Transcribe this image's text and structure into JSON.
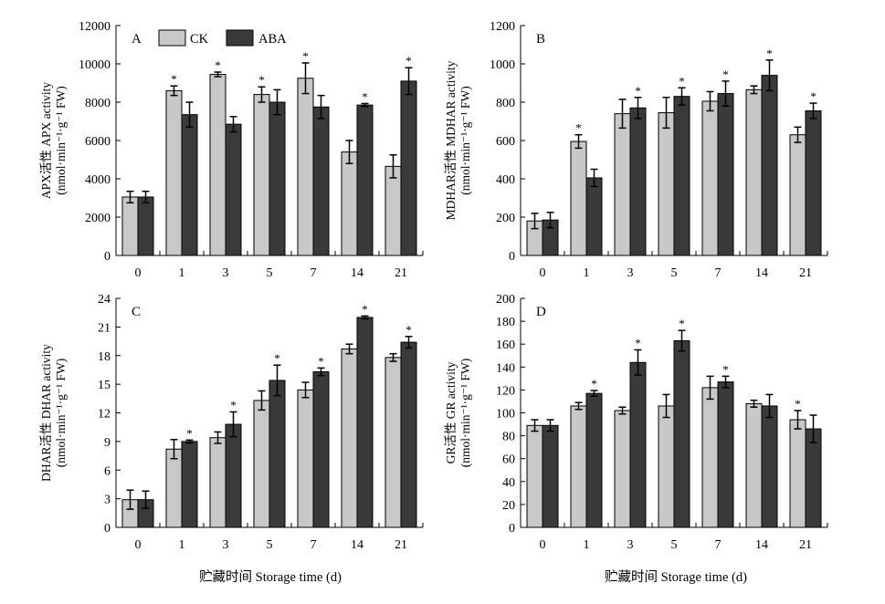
{
  "figure": {
    "xlabel": "贮藏时间 Storage time (d)",
    "legend": [
      {
        "name": "CK",
        "color": "#c8c8c8"
      },
      {
        "name": "ABA",
        "color": "#3a3a3a"
      }
    ]
  },
  "colors": {
    "CK": "#c8c8c8",
    "ABA": "#3a3a3a",
    "axis": "#000000"
  },
  "chart_data": [
    {
      "type": "bar",
      "panel": "A",
      "ylabel_line1": "APX活性 APX activity",
      "ylabel_line2": "(nmol·min⁻¹·g⁻¹ FW)",
      "ylim": [
        0,
        12000
      ],
      "yticks": [
        0,
        2000,
        4000,
        6000,
        8000,
        10000,
        12000
      ],
      "categories": [
        "0",
        "1",
        "3",
        "5",
        "7",
        "14",
        "21"
      ],
      "series": [
        {
          "name": "CK",
          "values": [
            3050,
            8600,
            9450,
            8400,
            9250,
            5400,
            4650
          ],
          "errors": [
            300,
            250,
            120,
            400,
            800,
            600,
            600
          ],
          "stars": [
            false,
            true,
            true,
            true,
            true,
            false,
            false
          ]
        },
        {
          "name": "ABA",
          "values": [
            3050,
            7350,
            6850,
            8000,
            7750,
            7850,
            9100
          ],
          "errors": [
            300,
            650,
            400,
            650,
            600,
            80,
            700
          ],
          "stars": [
            false,
            false,
            false,
            false,
            false,
            true,
            true
          ]
        }
      ]
    },
    {
      "type": "bar",
      "panel": "B",
      "ylabel_line1": "MDHAR活性 MDHAR activity",
      "ylabel_line2": "(nmol·min⁻¹·g⁻¹ FW)",
      "ylim": [
        0,
        1200
      ],
      "yticks": [
        0,
        200,
        400,
        600,
        800,
        1000,
        1200
      ],
      "categories": [
        "0",
        "1",
        "3",
        "5",
        "7",
        "14",
        "21"
      ],
      "series": [
        {
          "name": "CK",
          "values": [
            180,
            595,
            740,
            745,
            805,
            865,
            630
          ],
          "errors": [
            40,
            35,
            75,
            80,
            50,
            20,
            40
          ],
          "stars": [
            false,
            true,
            false,
            false,
            false,
            false,
            false
          ]
        },
        {
          "name": "ABA",
          "values": [
            185,
            405,
            770,
            830,
            845,
            940,
            755
          ],
          "errors": [
            40,
            45,
            55,
            45,
            65,
            80,
            40
          ],
          "stars": [
            false,
            false,
            true,
            true,
            true,
            true,
            true
          ]
        }
      ]
    },
    {
      "type": "bar",
      "panel": "C",
      "ylabel_line1": "DHAR活性 DHAR activity",
      "ylabel_line2": "(nmol·min⁻¹·g⁻¹ FW)",
      "ylim": [
        0,
        24
      ],
      "yticks": [
        0,
        3,
        6,
        9,
        12,
        15,
        18,
        21,
        24
      ],
      "categories": [
        "0",
        "1",
        "3",
        "5",
        "7",
        "14",
        "21"
      ],
      "series": [
        {
          "name": "CK",
          "values": [
            2.9,
            8.2,
            9.4,
            13.3,
            14.4,
            18.7,
            17.8
          ],
          "errors": [
            1.0,
            1.0,
            0.6,
            1.0,
            0.8,
            0.5,
            0.4
          ],
          "stars": [
            false,
            false,
            false,
            false,
            false,
            false,
            false
          ]
        },
        {
          "name": "ABA",
          "values": [
            2.9,
            9.0,
            10.8,
            15.4,
            16.3,
            22.0,
            19.4
          ],
          "errors": [
            0.9,
            0.15,
            1.3,
            1.6,
            0.4,
            0.15,
            0.6
          ],
          "stars": [
            false,
            true,
            true,
            true,
            true,
            true,
            true
          ]
        }
      ]
    },
    {
      "type": "bar",
      "panel": "D",
      "ylabel_line1": "GR活性 GR activity",
      "ylabel_line2": "(nmol·min⁻¹·g⁻¹ FW)",
      "ylim": [
        0,
        200
      ],
      "yticks": [
        0,
        20,
        40,
        60,
        80,
        100,
        120,
        140,
        160,
        180,
        200
      ],
      "categories": [
        "0",
        "1",
        "3",
        "5",
        "7",
        "14",
        "21"
      ],
      "series": [
        {
          "name": "CK",
          "values": [
            89,
            106,
            102,
            106,
            122,
            108,
            94
          ],
          "errors": [
            5,
            3,
            3,
            10,
            10,
            3,
            8
          ],
          "stars": [
            false,
            false,
            false,
            false,
            false,
            false,
            true
          ]
        },
        {
          "name": "ABA",
          "values": [
            89,
            117,
            144,
            163,
            127,
            106,
            86
          ],
          "errors": [
            5,
            2.5,
            11,
            9,
            5,
            10,
            12
          ],
          "stars": [
            false,
            true,
            true,
            true,
            true,
            false,
            false
          ]
        }
      ]
    }
  ]
}
